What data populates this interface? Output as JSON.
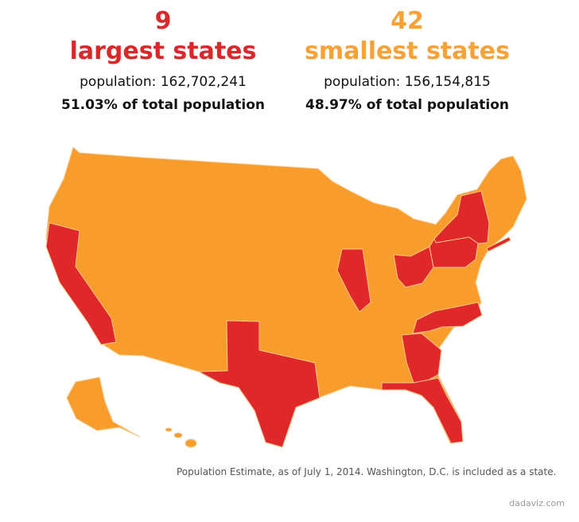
{
  "largest": {
    "count": "9",
    "label": "largest states",
    "population": "population: 162,702,241",
    "share": "51.03% of total population"
  },
  "smallest": {
    "count": "42",
    "label": "smallest states",
    "population": "population: 156,154,815",
    "share": "48.97% of total population"
  },
  "footnote": "Population Estimate, as of July 1, 2014. Washington, D.C. is included as a state.",
  "credit": "dadaviz.com"
}
